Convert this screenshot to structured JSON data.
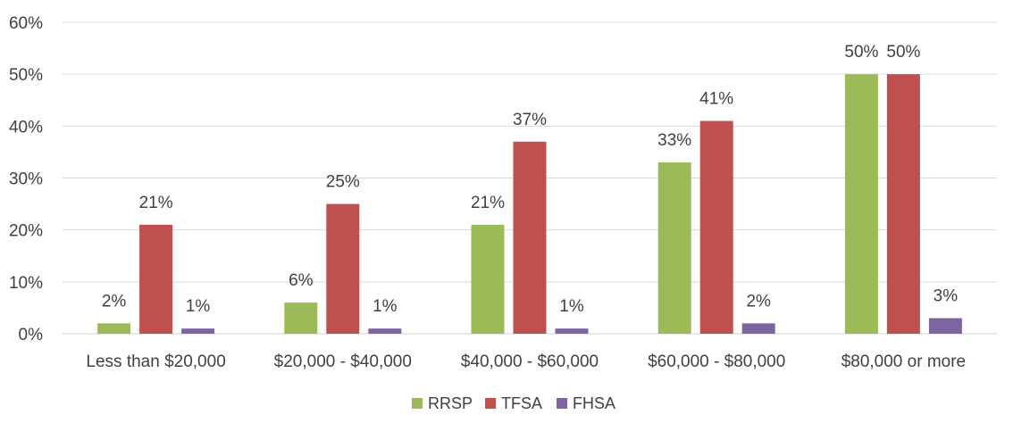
{
  "chart_data": {
    "type": "bar",
    "categories": [
      "Less than $20,000",
      "$20,000 - $40,000",
      "$40,000 - $60,000",
      "$60,000 - $80,000",
      "$80,000 or more"
    ],
    "series": [
      {
        "name": "RRSP",
        "color": "#9bbb59",
        "values": [
          2,
          6,
          21,
          33,
          50
        ],
        "labels": [
          "2%",
          "6%",
          "21%",
          "33%",
          "50%"
        ]
      },
      {
        "name": "TFSA",
        "color": "#c0504d",
        "values": [
          21,
          25,
          37,
          41,
          50
        ],
        "labels": [
          "21%",
          "25%",
          "37%",
          "41%",
          "50%"
        ]
      },
      {
        "name": "FHSA",
        "color": "#8064a2",
        "values": [
          1,
          1,
          1,
          2,
          3
        ],
        "labels": [
          "1%",
          "1%",
          "1%",
          "2%",
          "3%"
        ]
      }
    ],
    "ylim": [
      0,
      60
    ],
    "yticks": [
      0,
      10,
      20,
      30,
      40,
      50,
      60
    ],
    "ytick_labels": [
      "0%",
      "10%",
      "20%",
      "30%",
      "40%",
      "50%",
      "60%"
    ],
    "grid": true,
    "legend": "bottom-center"
  }
}
